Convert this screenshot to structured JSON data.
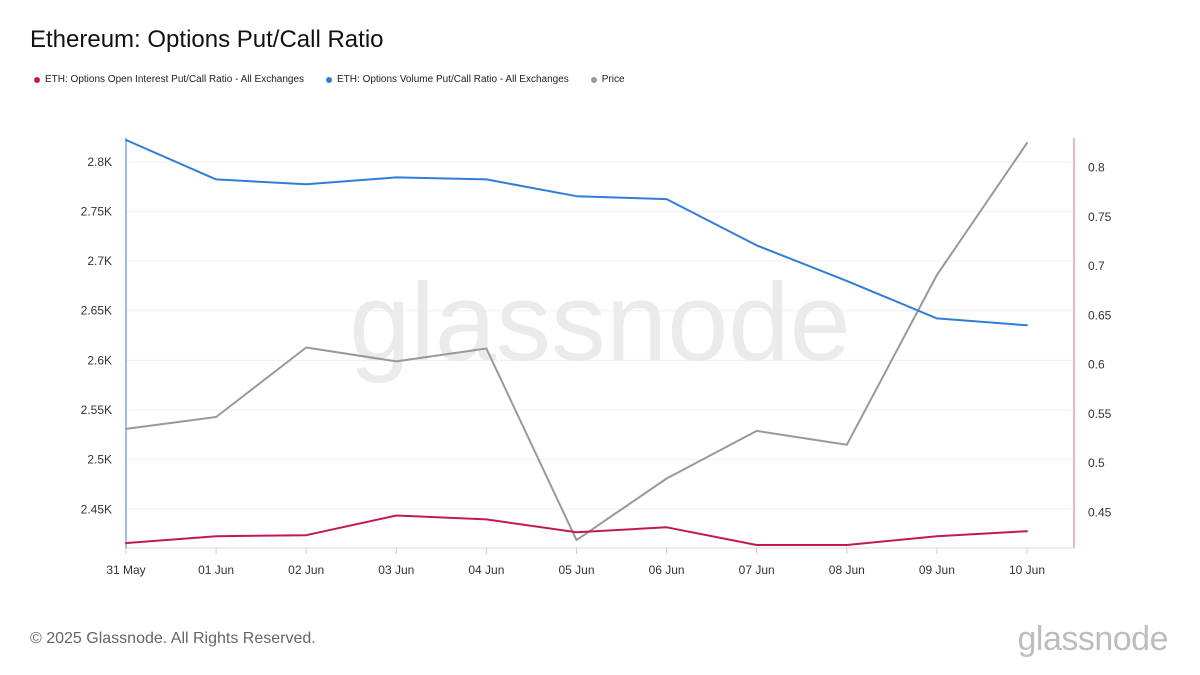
{
  "chart_data": {
    "type": "line",
    "title": "Ethereum: Options Put/Call Ratio",
    "watermark": "glassnode",
    "categories": [
      "31 May",
      "01 Jun",
      "02 Jun",
      "03 Jun",
      "04 Jun",
      "05 Jun",
      "06 Jun",
      "07 Jun",
      "08 Jun",
      "09 Jun",
      "10 Jun"
    ],
    "left_axis": {
      "ticks": [
        2450,
        2500,
        2550,
        2600,
        2650,
        2700,
        2750,
        2800
      ],
      "tick_labels": [
        "2.45K",
        "2.5K",
        "2.55K",
        "2.6K",
        "2.65K",
        "2.7K",
        "2.75K",
        "2.8K"
      ],
      "range": [
        2411,
        2822
      ],
      "color": "#2f7ed8"
    },
    "right_axis": {
      "ticks": [
        0.45,
        0.5,
        0.55,
        0.6,
        0.65,
        0.7,
        0.75,
        0.8
      ],
      "tick_labels": [
        "0.45",
        "0.5",
        "0.55",
        "0.6",
        "0.65",
        "0.7",
        "0.75",
        "0.8"
      ],
      "range": [
        0.414,
        0.828
      ],
      "color": "#e8a0a8"
    },
    "grid": true,
    "legend_position": "top-left",
    "series": [
      {
        "name": "ETH: Options Open Interest Put/Call Ratio - All Exchanges",
        "color": "#c2185b",
        "axis": "right",
        "values": [
          0.419,
          0.426,
          0.427,
          0.447,
          0.443,
          0.43,
          0.435,
          0.417,
          0.417,
          0.426,
          0.431
        ]
      },
      {
        "name": "ETH: Options Volume Put/Call Ratio - All Exchanges",
        "color": "#2f7ed8",
        "axis": "right",
        "values": [
          0.828,
          0.788,
          0.783,
          0.79,
          0.788,
          0.771,
          0.768,
          0.721,
          0.685,
          0.647,
          0.64
        ]
      },
      {
        "name": "Price",
        "color": "#999999",
        "axis": "left",
        "values": [
          2531,
          2543,
          2613,
          2599,
          2612,
          2419,
          2481,
          2529,
          2515,
          2686,
          2819
        ]
      }
    ]
  },
  "footer": {
    "copyright": "© 2025 Glassnode. All Rights Reserved.",
    "logo": "glassnode"
  }
}
